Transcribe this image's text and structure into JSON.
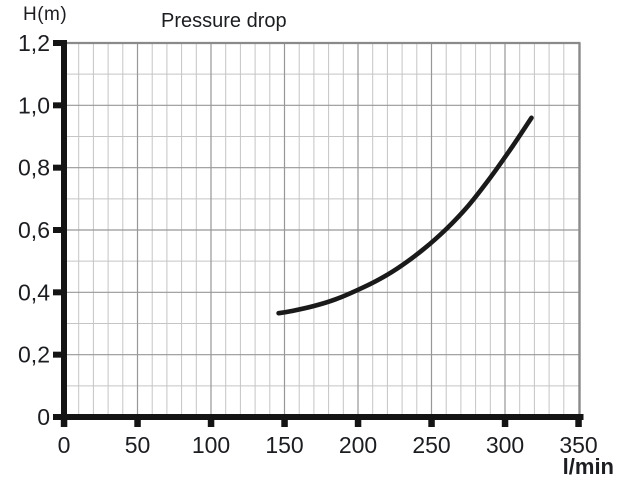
{
  "chart_data": {
    "type": "line",
    "title": "Pressure drop",
    "xlabel": "l/min",
    "ylabel": "H(m)",
    "xlim": [
      0,
      350
    ],
    "ylim": [
      0,
      1.2
    ],
    "x_ticks": [
      0,
      50,
      100,
      150,
      200,
      250,
      300,
      350
    ],
    "x_tick_labels": [
      "0",
      "50",
      "100",
      "150",
      "200",
      "250",
      "300",
      "350"
    ],
    "y_ticks": [
      0,
      0.2,
      0.4,
      0.6,
      0.8,
      1.0,
      1.2
    ],
    "y_tick_labels": [
      "0",
      "0,2",
      "0,4",
      "0,6",
      "0,8",
      "1,0",
      "1,2"
    ],
    "x_minor_step": 10,
    "y_minor_step": 0.1,
    "grid": true,
    "legend": "none",
    "series": [
      {
        "name": "pressure-drop-curve",
        "points": [
          [
            146,
            0.333
          ],
          [
            155,
            0.34
          ],
          [
            170,
            0.356
          ],
          [
            185,
            0.378
          ],
          [
            200,
            0.408
          ],
          [
            215,
            0.443
          ],
          [
            230,
            0.487
          ],
          [
            245,
            0.54
          ],
          [
            260,
            0.603
          ],
          [
            275,
            0.678
          ],
          [
            290,
            0.768
          ],
          [
            305,
            0.868
          ],
          [
            318,
            0.96
          ]
        ]
      }
    ],
    "colors": {
      "curve": "#1a1a1a",
      "axis": "#141414",
      "tick": "#141414",
      "grid_minor": "#c5c5c5",
      "grid_major": "#979797",
      "border": "#8a8a8a",
      "text": "#1b1d20",
      "background": "#ffffff"
    }
  }
}
